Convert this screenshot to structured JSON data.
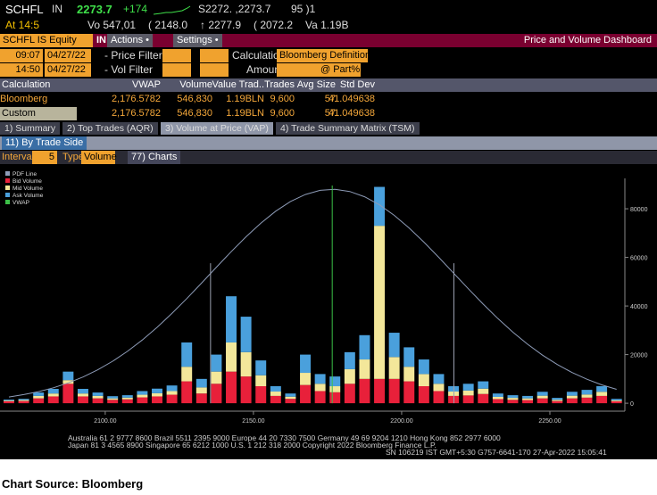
{
  "header": {
    "line1": [
      "SCHFL",
      "IN",
      "2273.7",
      "+174",
      "S2272. ,2273.7",
      "95 )1"
    ],
    "line2": [
      "At 14:5",
      "Vo 547,01",
      "( 2148.0",
      "↑ 2277.9",
      "( 2072.2",
      "Va 1.19B"
    ]
  },
  "toolbar": {
    "security": "SCHFL IS Equity",
    "actions": "Actions •",
    "settings": "Settings •",
    "title": "Price and Volume Dashboard"
  },
  "filters": {
    "row1": {
      "time": "09:07",
      "date": "04/27/22",
      "label1": "Price Filter",
      "label2": "Calculation",
      "calc": "Bloomberg Definition"
    },
    "row2": {
      "time": "14:50",
      "date": "04/27/22",
      "label1": "Vol Filter",
      "label2": "Amount",
      "part": "@ Part%"
    }
  },
  "table": {
    "columns": [
      "Calculation",
      "VWAP",
      "Volume",
      "Value Trad..",
      "Trades",
      "Avg Size",
      "Std Dev"
    ],
    "rows": [
      [
        "Bloomberg",
        "2,176.5782",
        "546,830",
        "1.19BLN",
        "9,600",
        "57",
        "41.049638"
      ],
      [
        "Custom",
        "2,176.5782",
        "546,830",
        "1.19BLN",
        "9,600",
        "57",
        "41.049638"
      ]
    ]
  },
  "tabs": [
    "1) Summary",
    "2) Top Trades (AQR)",
    "3) Volume at Price (VAP)",
    "4) Trade Summary Matrix (TSM)"
  ],
  "subtab": "11) By Trade Side",
  "chart_controls": {
    "interval_label": "Interval",
    "interval": "5",
    "type_label": "Type",
    "type_value": "Volume",
    "charts": "77) Charts"
  },
  "chart_data": {
    "type": "bar",
    "stacked": true,
    "x": [
      2067.5,
      2072.5,
      2077.5,
      2082.5,
      2087.5,
      2092.5,
      2097.5,
      2102.5,
      2107.5,
      2112.5,
      2117.5,
      2122.5,
      2127.5,
      2132.5,
      2137.5,
      2142.5,
      2147.5,
      2152.5,
      2157.5,
      2162.5,
      2167.5,
      2172.5,
      2177.5,
      2182.5,
      2187.5,
      2192.5,
      2197.5,
      2202.5,
      2207.5,
      2212.5,
      2217.5,
      2222.5,
      2227.5,
      2232.5,
      2237.5,
      2242.5,
      2247.5,
      2252.5,
      2257.5,
      2262.5,
      2267.5,
      2272.5
    ],
    "series": [
      {
        "name": "Bid Volume",
        "color": "#e8203a",
        "values": [
          800,
          900,
          2000,
          2800,
          8000,
          2800,
          2000,
          1400,
          1600,
          2400,
          2800,
          3500,
          9000,
          4000,
          8000,
          13000,
          11000,
          7000,
          3000,
          1800,
          7500,
          5000,
          4500,
          8000,
          10000,
          10000,
          10000,
          9000,
          7000,
          5000,
          3000,
          3200,
          3800,
          1700,
          1400,
          1300,
          2000,
          900,
          2000,
          2300,
          3000,
          800
        ]
      },
      {
        "name": "Mid Volume",
        "color": "#f3e79a",
        "values": [
          300,
          400,
          1000,
          1200,
          1500,
          1200,
          1000,
          600,
          700,
          1100,
          1300,
          1500,
          6000,
          2500,
          5000,
          12000,
          10000,
          4500,
          1800,
          900,
          5000,
          3000,
          2500,
          6000,
          8000,
          63000,
          9000,
          6000,
          5000,
          3000,
          1800,
          2000,
          2200,
          900,
          800,
          700,
          1100,
          500,
          1100,
          1300,
          1700,
          400
        ]
      },
      {
        "name": "Ask Volume",
        "color": "#4aa0dc",
        "values": [
          400,
          500,
          1400,
          1900,
          3500,
          1900,
          1400,
          900,
          1000,
          1500,
          1900,
          2300,
          10000,
          3500,
          7000,
          19000,
          14600,
          6100,
          2200,
          1300,
          7500,
          4000,
          4000,
          7000,
          10000,
          16000,
          10000,
          8000,
          6000,
          4000,
          2200,
          2800,
          3000,
          1400,
          1100,
          1000,
          1600,
          800,
          1600,
          1900,
          2300,
          600
        ]
      }
    ],
    "pdf_line": {
      "name": "PDF Line",
      "color": "#8e9cb8",
      "values": [
        2580,
        3540,
        4780,
        6360,
        8360,
        10800,
        13770,
        17270,
        21360,
        26030,
        31230,
        36940,
        43050,
        49430,
        55940,
        62330,
        68470,
        74090,
        78990,
        82980,
        85870,
        87570,
        87980,
        87090,
        84940,
        81630,
        77280,
        72100,
        66260,
        60020,
        53550,
        47070,
        40770,
        34800,
        29260,
        24240,
        19780,
        15910,
        12610,
        9850,
        7570,
        5740
      ]
    },
    "vwap": {
      "name": "VWAP",
      "color": "#3cc048",
      "value": 2176.5782
    },
    "std_dev": 41.049638,
    "xlim": [
      2064.5,
      2275.3
    ],
    "ylim": [
      -1800,
      92500
    ],
    "xticks": [
      {
        "value": 2100,
        "label": "2100.00"
      },
      {
        "value": 2150,
        "label": "2150.00"
      },
      {
        "value": 2200,
        "label": "2200.00"
      },
      {
        "value": 2250,
        "label": "2250.00"
      }
    ],
    "yticks": [
      0,
      20000,
      40000,
      60000,
      80000
    ]
  },
  "footer": [
    "Australia 61 2 9777 8600 Brazil 5511 2395 9000 Europe 44 20 7330 7500 Germany 49 69 9204 1210 Hong Kong 852 2977 6000",
    "Japan 81 3 4565 8900 Singapore 65 6212 1000 U.S. 1 212 318 2000 Copyright 2022 Bloomberg Finance L.P.",
    "SN 106219 IST GMT+5:30 G757-6641-170 27-Apr-2022 15:05:41"
  ],
  "source": "Chart Source: Bloomberg"
}
